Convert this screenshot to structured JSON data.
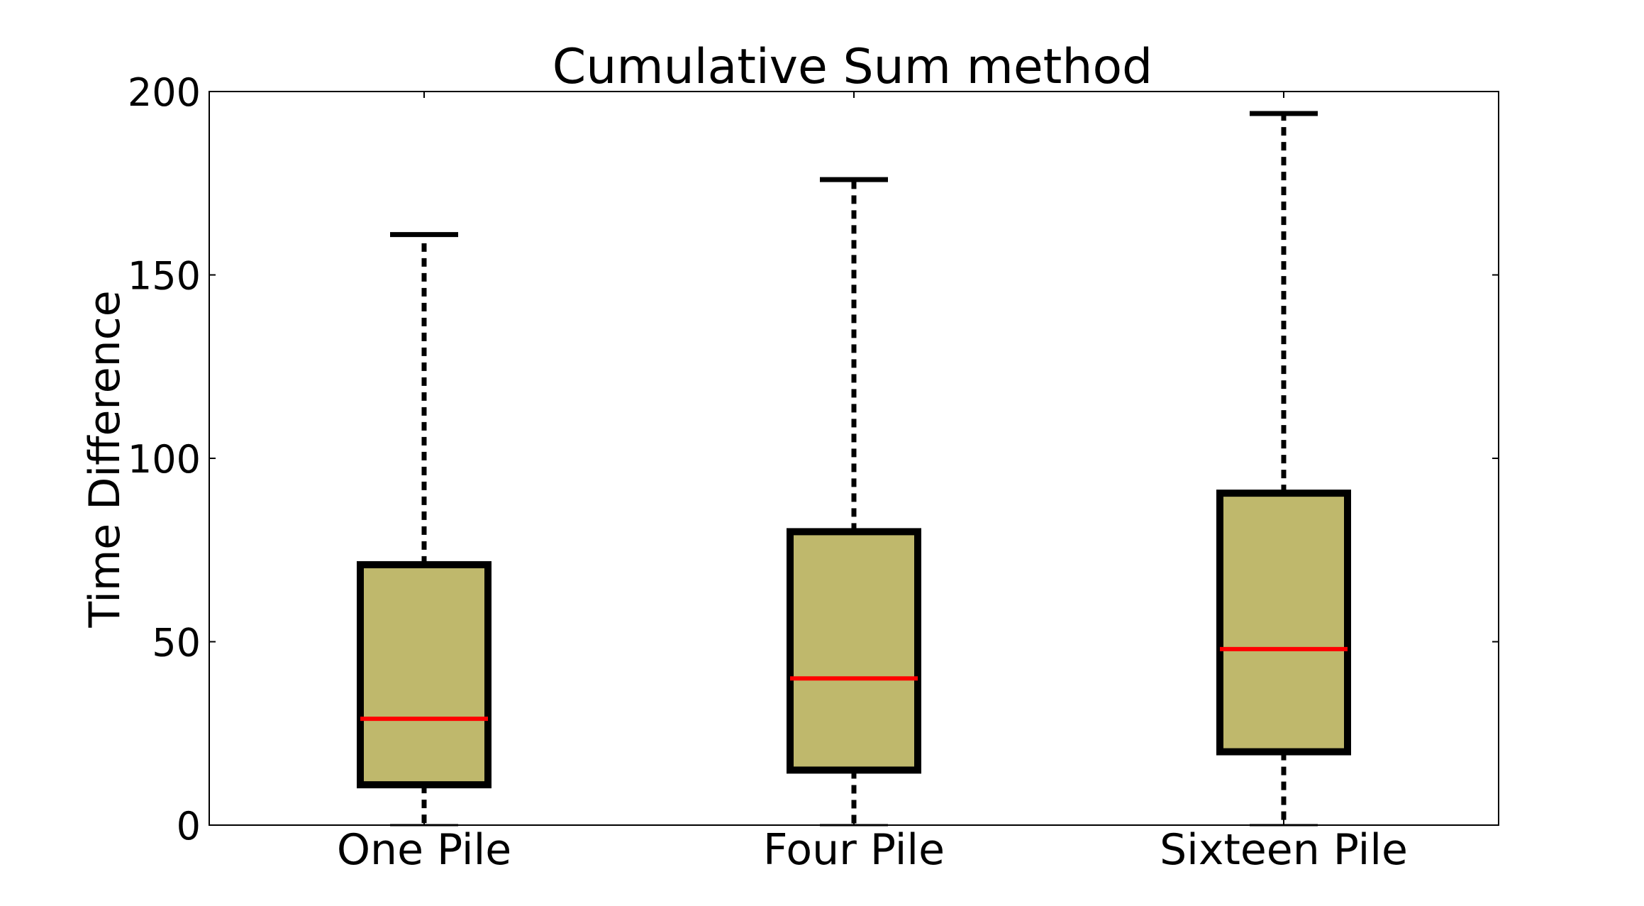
{
  "chart_data": {
    "type": "box",
    "title": "Cumulative Sum method",
    "xlabel": "",
    "ylabel": "Time Difference",
    "ylim": [
      0,
      200
    ],
    "yticks": [
      0,
      50,
      100,
      150,
      200
    ],
    "grid": false,
    "categories": [
      "One Pile",
      "Four Pile",
      "Sixteen Pile"
    ],
    "boxes": [
      {
        "whisker_low": 0,
        "q1": 11,
        "median": 29,
        "q3": 71,
        "whisker_high": 161
      },
      {
        "whisker_low": 0,
        "q1": 15,
        "median": 40,
        "q3": 80,
        "whisker_high": 176
      },
      {
        "whisker_low": 0,
        "q1": 20,
        "median": 48,
        "q3": 90.5,
        "whisker_high": 194
      }
    ],
    "colors": {
      "box_fill": "#bfb86c",
      "box_edge": "#000000",
      "median": "#ff0000",
      "whisker": "#000000"
    }
  }
}
